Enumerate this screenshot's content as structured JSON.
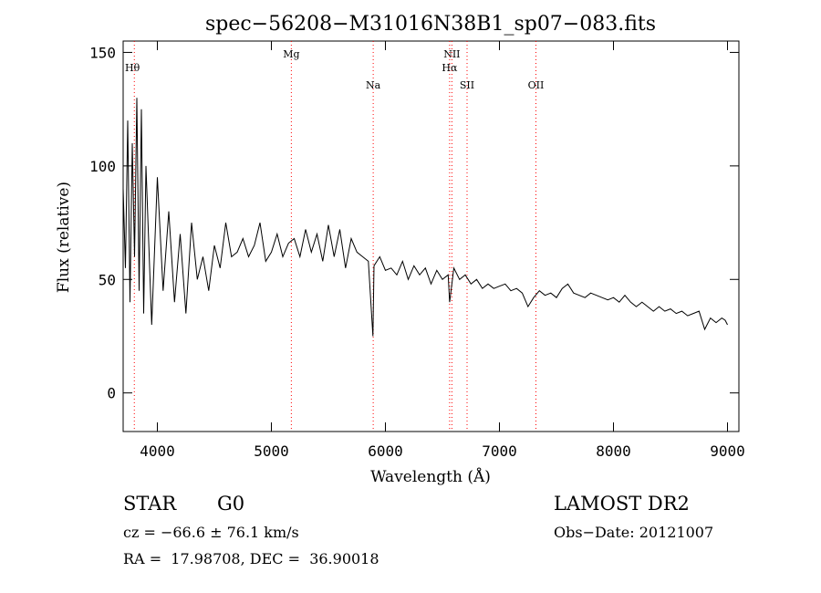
{
  "chart_data": {
    "type": "line",
    "title": "spec−56208−M31016N38B1_sp07−083.fits",
    "xlabel": "Wavelength (Å)",
    "ylabel": "Flux (relative)",
    "xlim": [
      3700,
      9100
    ],
    "ylim": [
      -17,
      155
    ],
    "x_ticks": [
      4000,
      5000,
      6000,
      7000,
      8000,
      9000
    ],
    "y_ticks": [
      0,
      50,
      100,
      150
    ],
    "line_color": "#000000",
    "marker_color": "#ff0000",
    "lines": [
      {
        "label": "Hθ",
        "x": 3798
      },
      {
        "label": "Mg",
        "x": 5175
      },
      {
        "label": "Na",
        "x": 5893
      },
      {
        "label": "NII",
        "x": 6583
      },
      {
        "label": "Hα",
        "x": 6563
      },
      {
        "label": "SII",
        "x": 6716
      },
      {
        "label": "OII",
        "x": 7320
      }
    ],
    "series": [
      {
        "x": [
          3700,
          3720,
          3740,
          3760,
          3780,
          3800,
          3820,
          3840,
          3860,
          3880,
          3900,
          3950,
          4000,
          4050,
          4100,
          4150,
          4200,
          4250,
          4300,
          4350,
          4400,
          4450,
          4500,
          4550,
          4600,
          4650,
          4700,
          4750,
          4800,
          4850,
          4900,
          4950,
          5000,
          5050,
          5100,
          5150,
          5200,
          5250,
          5300,
          5350,
          5400,
          5450,
          5500,
          5550,
          5600,
          5650,
          5700,
          5750,
          5800,
          5850,
          5890,
          5900,
          5950,
          6000,
          6050,
          6100,
          6150,
          6200,
          6250,
          6300,
          6350,
          6400,
          6450,
          6500,
          6550,
          6563,
          6600,
          6650,
          6700,
          6750,
          6800,
          6850,
          6900,
          6950,
          7000,
          7050,
          7100,
          7150,
          7200,
          7250,
          7300,
          7350,
          7400,
          7450,
          7500,
          7550,
          7600,
          7650,
          7700,
          7750,
          7800,
          7850,
          7900,
          7950,
          8000,
          8050,
          8100,
          8150,
          8200,
          8250,
          8300,
          8350,
          8400,
          8450,
          8500,
          8550,
          8600,
          8650,
          8700,
          8750,
          8800,
          8850,
          8900,
          8950,
          8980,
          9000
        ],
        "y": [
          90,
          55,
          120,
          40,
          110,
          60,
          130,
          45,
          125,
          35,
          100,
          30,
          95,
          45,
          80,
          40,
          70,
          35,
          75,
          50,
          60,
          45,
          65,
          55,
          75,
          60,
          62,
          68,
          60,
          65,
          75,
          58,
          62,
          70,
          60,
          66,
          68,
          60,
          72,
          62,
          70,
          58,
          74,
          60,
          72,
          55,
          68,
          62,
          60,
          58,
          25,
          56,
          60,
          54,
          55,
          52,
          58,
          50,
          56,
          52,
          55,
          48,
          54,
          50,
          52,
          40,
          55,
          50,
          52,
          48,
          50,
          46,
          48,
          46,
          47,
          48,
          45,
          46,
          44,
          38,
          42,
          45,
          43,
          44,
          42,
          46,
          48,
          44,
          43,
          42,
          44,
          43,
          42,
          41,
          42,
          40,
          43,
          40,
          38,
          40,
          38,
          36,
          38,
          36,
          37,
          35,
          36,
          34,
          35,
          36,
          28,
          33,
          31,
          33,
          32,
          30
        ]
      }
    ]
  },
  "info": {
    "class_label": "STAR",
    "subclass": "G0",
    "cz_text": "cz = −66.6 ± 76.1 km/s",
    "radec_text": "RA =  17.98708, DEC =  36.90018",
    "survey": "LAMOST DR2",
    "obs_date": "Obs−Date: 20121007"
  }
}
